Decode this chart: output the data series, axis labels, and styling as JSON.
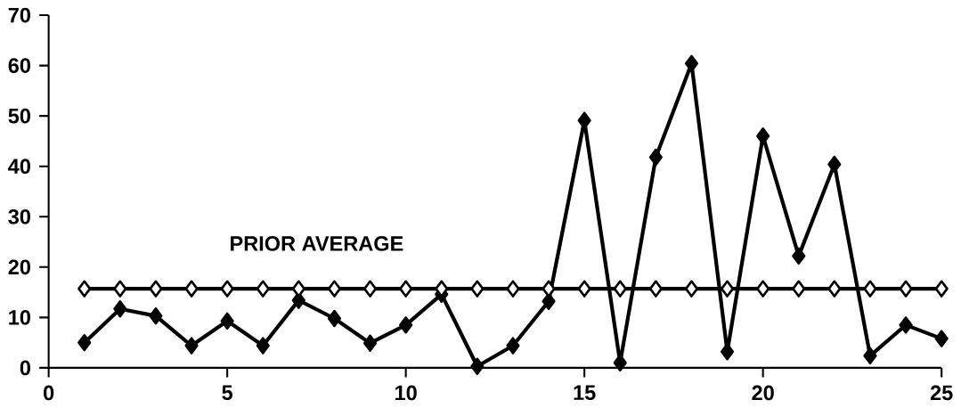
{
  "chart_data": {
    "type": "line",
    "x": [
      1,
      2,
      3,
      4,
      5,
      6,
      7,
      8,
      9,
      10,
      11,
      12,
      13,
      14,
      15,
      16,
      17,
      18,
      19,
      20,
      21,
      22,
      23,
      24,
      25
    ],
    "series": [
      {
        "color": "#000000",
        "values": [
          5,
          11.7,
          10.3,
          4.4,
          9.3,
          4.4,
          13.4,
          9.8,
          4.9,
          8.5,
          14.6,
          0.3,
          4.4,
          13.2,
          49.1,
          1,
          41.8,
          60.4,
          3.2,
          46,
          22.2,
          40.4,
          2.4,
          8.5,
          5.8
        ]
      },
      {
        "color": "#000000",
        "values": [
          15.7,
          15.7,
          15.7,
          15.7,
          15.7,
          15.7,
          15.7,
          15.7,
          15.7,
          15.7,
          15.7,
          15.7,
          15.7,
          15.7,
          15.7,
          15.7,
          15.7,
          15.7,
          15.7,
          15.7,
          15.7,
          15.7,
          15.7,
          15.7,
          15.7
        ]
      }
    ],
    "annotations": [
      {
        "text": "PRIOR AVERAGE",
        "x": 7.5,
        "y": 15.7
      }
    ],
    "xlim": [
      0,
      25
    ],
    "xticks": [
      0,
      5,
      10,
      15,
      20,
      25
    ],
    "ylim": [
      0,
      70
    ],
    "yticks": [
      0,
      10,
      20,
      30,
      40,
      50,
      60,
      70
    ],
    "marker": "diamond",
    "line_style": "solid",
    "grid": false
  }
}
